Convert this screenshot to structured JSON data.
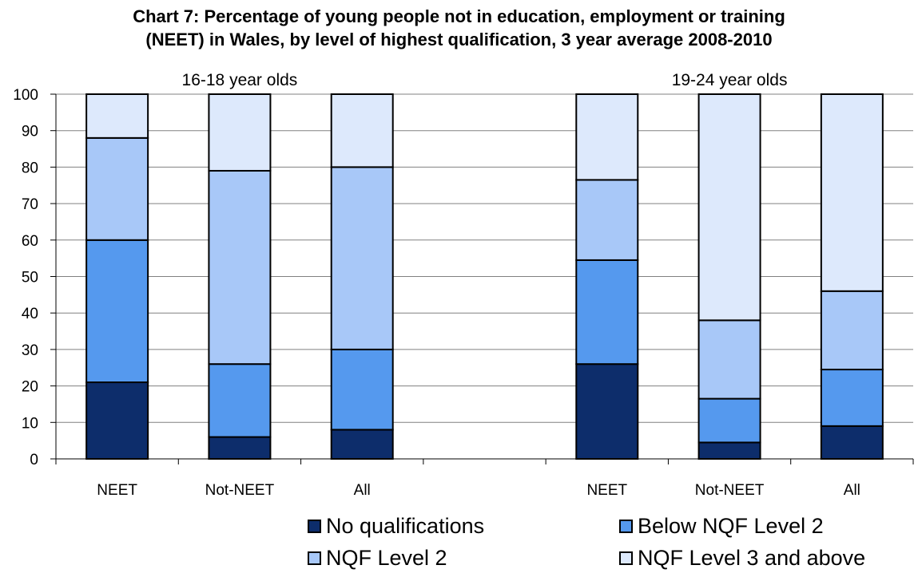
{
  "title": {
    "line1": "Chart 7: Percentage of young people not in education, employment or training",
    "line2": "(NEET) in Wales, by level of highest qualification, 3 year average 2008-2010"
  },
  "chart_data": {
    "type": "bar",
    "stacked": true,
    "groups": [
      "16-18 year olds",
      "19-24 year olds"
    ],
    "categories": [
      "NEET",
      "Not-NEET",
      "All",
      "NEET",
      "Not-NEET",
      "All"
    ],
    "ylim": [
      0,
      100
    ],
    "yticks": [
      0,
      10,
      20,
      30,
      40,
      50,
      60,
      70,
      80,
      90,
      100
    ],
    "gridlines": "horizontal",
    "legend_position": "bottom",
    "series": [
      {
        "name": "No qualifications",
        "color": "#0d2d6b",
        "values": [
          21,
          6,
          8,
          26,
          4.5,
          9
        ]
      },
      {
        "name": "Below NQF Level 2",
        "color": "#5599ee",
        "values": [
          39,
          20,
          22,
          28.5,
          12,
          15.5
        ]
      },
      {
        "name": "NQF Level 2",
        "color": "#a8c8f8",
        "values": [
          28,
          53,
          50,
          22,
          21.5,
          21.5
        ]
      },
      {
        "name": "NQF Level 3 and above",
        "color": "#dde9fc",
        "values": [
          12,
          21,
          20,
          23.5,
          62,
          54
        ]
      }
    ]
  }
}
